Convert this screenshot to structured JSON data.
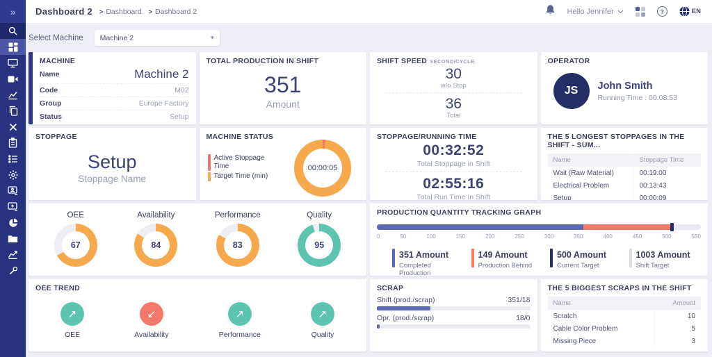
{
  "colors": {
    "sidebar": "#273380",
    "sidebar_active": "#4a56a6",
    "navy": "#3d4474",
    "dark_navy": "#252f66",
    "muted": "#9aa0b5",
    "orange": "#f6a94d",
    "teal": "#5ec4b0",
    "salmon": "#f5796a",
    "indigo": "#5c69b0",
    "track_gray": "#e8e9f1",
    "background": "#edeef6"
  },
  "sidebar": {
    "icons": [
      "expand",
      "search",
      "dashboard",
      "monitor",
      "camera",
      "chart-line",
      "documents",
      "tools",
      "clipboard",
      "list",
      "gear",
      "monitor-user",
      "monitor-add",
      "pie-chart",
      "folder",
      "trend",
      "wrench"
    ],
    "expand_glyph": "»"
  },
  "header": {
    "breadcrumb": {
      "title": "Dashboard 2",
      "sep": ">",
      "path": [
        "Dashboard",
        "Dashboard 2"
      ]
    },
    "greeting": "Hello Jennifer",
    "help": "?",
    "language": "EN"
  },
  "filter": {
    "label": "Select Machine",
    "value": "Machine 2",
    "caret": "▾"
  },
  "cards": {
    "machine": {
      "title": "MACHINE",
      "rows": [
        {
          "label": "Name",
          "value": "Machine 2"
        },
        {
          "label": "Code",
          "value": "M02"
        },
        {
          "label": "Group",
          "value": "Europe Factory"
        },
        {
          "label": "Status",
          "value": "Setup"
        }
      ]
    },
    "total_production": {
      "title": "TOTAL PRODUCTION IN SHIFT",
      "value": "351",
      "unit": "Amount"
    },
    "shift_speed": {
      "title": "SHIFT SPEED",
      "subtitle": "SECOND/CYCLE",
      "items": [
        {
          "value": "30",
          "label": "w/o Stop"
        },
        {
          "value": "36",
          "label": "Total"
        }
      ]
    },
    "operator": {
      "title": "OPERATOR",
      "initials": "JS",
      "name": "John Smith",
      "running": "Running Time :  00:08:53"
    },
    "stoppage": {
      "title": "STOPPAGE",
      "value": "Setup",
      "label": "Stoppage Name"
    },
    "machine_status": {
      "title": "MACHINE STATUS",
      "legend": [
        {
          "label": "Active Stoppage Time",
          "color": "#f5796a"
        },
        {
          "label": "Target Time (min)",
          "color": "#f6a94d"
        }
      ]
    },
    "stoppage_running": {
      "title": "STOPPAGE/RUNNING TIME",
      "items": [
        {
          "value": "00:32:52",
          "label": "Total Stoppage in Shift"
        },
        {
          "value": "02:55:16",
          "label": "Total Run Time In Shift"
        }
      ]
    },
    "longest_stoppages": {
      "title": "THE 5 LONGEST STOPPAGES IN THE SHIFT - SUM...",
      "columns": [
        "Name",
        "Stoppage Time"
      ],
      "rows": [
        {
          "name": "Wait (Raw Material)",
          "time": "00:19:00"
        },
        {
          "name": "Electrical Problem",
          "time": "00:13:43"
        },
        {
          "name": "Setup",
          "time": "00:00:09"
        }
      ]
    },
    "oee_trend": {
      "title": "OEE TREND",
      "items": [
        {
          "label": "OEE",
          "arrow": "↗",
          "direction": "up"
        },
        {
          "label": "Availability",
          "arrow": "↙",
          "direction": "down"
        },
        {
          "label": "Performance",
          "arrow": "↗",
          "direction": "up"
        },
        {
          "label": "Quality",
          "arrow": "↗",
          "direction": "up"
        }
      ]
    },
    "scrap": {
      "title": "SCRAP"
    },
    "biggest_scraps": {
      "title": "THE 5 BIGGEST SCRAPS IN THE SHIFT",
      "columns": [
        "Name",
        "Amount"
      ],
      "rows": [
        {
          "name": "Scratch",
          "amount": "10"
        },
        {
          "name": "Cable Color Problem",
          "amount": "5"
        },
        {
          "name": "Missing Piece",
          "amount": "3"
        }
      ]
    }
  },
  "chart_data": [
    {
      "type": "pie",
      "title": "MACHINE STATUS",
      "labels": [
        "Active Stoppage Time",
        "Target Time (min)"
      ],
      "values": [
        1.5,
        98.5
      ],
      "colors": [
        "#f5796a",
        "#f6a94d"
      ],
      "center_label": "00:00:05",
      "donut": {
        "segments": [
          {
            "color": "#f5796a",
            "pct": 1.5
          },
          {
            "color": "#f6a94d",
            "pct": 98.5
          }
        ],
        "track": "#ededf3"
      }
    },
    {
      "type": "pie",
      "title": "OEE / Availability / Performance / Quality gauges",
      "gauges": [
        {
          "label": "OEE",
          "value": 67,
          "color": "#f6a94d",
          "donut": {
            "segments": [
              {
                "color": "#f6a94d",
                "pct": 67
              }
            ],
            "track": "#ededf3"
          }
        },
        {
          "label": "Availability",
          "value": 84,
          "color": "#f6a94d",
          "donut": {
            "segments": [
              {
                "color": "#f6a94d",
                "pct": 84
              }
            ],
            "track": "#ededf3"
          }
        },
        {
          "label": "Performance",
          "value": 83,
          "color": "#f6a94d",
          "donut": {
            "segments": [
              {
                "color": "#f6a94d",
                "pct": 83
              }
            ],
            "track": "#ededf3"
          }
        },
        {
          "label": "Quality",
          "value": 95,
          "color": "#5ec4b0",
          "donut": {
            "segments": [
              {
                "color": "#5ec4b0",
                "pct": 95
              }
            ],
            "track": "#ededf3"
          }
        }
      ]
    },
    {
      "type": "bar",
      "title": "PRODUCTION QUANTITY TRACKING GRAPH",
      "xlim": [
        0,
        550
      ],
      "ticks": [
        "0",
        "50",
        "100",
        "150",
        "200",
        "250",
        "300",
        "350",
        "400",
        "450",
        "500",
        "550"
      ],
      "segments": [
        {
          "name": "Completed Production",
          "value": 351,
          "color": "#5c69b0"
        },
        {
          "name": "Production Behind",
          "value": 149,
          "color": "#f5796a"
        },
        {
          "name": "Current Target",
          "value": 500,
          "color": "#252f66",
          "marker": true
        },
        {
          "name": "Shift Target",
          "value": 1003,
          "color": "#d9dbe6"
        }
      ],
      "legend": [
        {
          "value": "351 Amount",
          "caption": "Completed Production",
          "color": "#5c69b0"
        },
        {
          "value": "149 Amount",
          "caption": "Production Behind",
          "color": "#f5796a"
        },
        {
          "value": "500 Amount",
          "caption": "Current Target",
          "color": "#252f66"
        },
        {
          "value": "1003 Amount",
          "caption": "Shift Target",
          "color": "#d9dbe6"
        }
      ],
      "render": {
        "behind": {
          "percent": 90.9,
          "color": "#f5796a"
        },
        "completed": {
          "percent": 63.8,
          "color": "#5c69b0"
        },
        "marker_pos": 90.6
      }
    },
    {
      "type": "bar",
      "title": "SCRAP",
      "rows": [
        {
          "label": "Shift (prod./scrap)",
          "value": "351/18",
          "percent": 35,
          "color": "#5c69b0"
        },
        {
          "label": "Opr. (prod./scrap)",
          "value": "18/0",
          "percent": 1.8,
          "color": "#5c69b0"
        }
      ]
    }
  ]
}
